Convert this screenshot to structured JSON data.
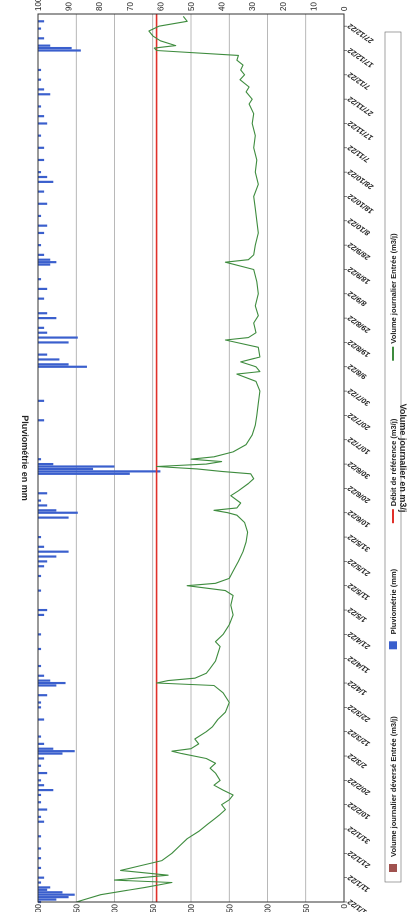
{
  "chart_data": {
    "type": "bar+line",
    "title": "",
    "left_axis": {
      "label": "Volume journalier en m3/j",
      "range": [
        0,
        400
      ],
      "ticks": [
        "0",
        "50",
        "100",
        "150",
        "200",
        "250",
        "300",
        "350",
        "400"
      ]
    },
    "right_axis": {
      "label": "Pluviométrie en mm",
      "range": [
        0,
        100
      ],
      "ticks": [
        "0",
        "10",
        "20",
        "30",
        "40",
        "50",
        "60",
        "70",
        "80",
        "90",
        "100"
      ]
    },
    "grid": true,
    "legend_position": "bottom",
    "x_tick_labels": [
      "1/1/22",
      "11/1/22",
      "21/1/22",
      "31/1/22",
      "10/2/22",
      "20/2/22",
      "2/3/22",
      "12/3/22",
      "22/3/22",
      "1/4/22",
      "11/4/22",
      "21/4/22",
      "1/5/22",
      "11/5/22",
      "21/5/22",
      "31/5/22",
      "10/6/22",
      "20/6/22",
      "30/6/22",
      "10/7/22",
      "20/7/22",
      "30/7/22",
      "9/8/22",
      "19/8/22",
      "29/8/22",
      "8/9/22",
      "18/9/22",
      "28/9/22",
      "8/10/22",
      "18/10/22",
      "28/10/22",
      "7/11/22",
      "17/11/22",
      "27/11/22",
      "7/12/22",
      "17/12/22",
      "27/12/22"
    ],
    "x_range_days": [
      0,
      365
    ],
    "series": [
      {
        "name": "Volume journalier déversé Entrée (m3/j)",
        "type": "bar",
        "color": "#a0524f",
        "axis": "left",
        "points": []
      },
      {
        "name": "Pluviométrie (mm)",
        "type": "bar",
        "color": "#3a5fcd",
        "axis": "right",
        "points": [
          [
            0,
            1
          ],
          [
            1,
            6
          ],
          [
            2,
            10
          ],
          [
            3,
            12
          ],
          [
            4,
            8
          ],
          [
            5,
            3
          ],
          [
            6,
            4
          ],
          [
            8,
            1
          ],
          [
            10,
            2
          ],
          [
            14,
            1
          ],
          [
            18,
            1
          ],
          [
            22,
            1
          ],
          [
            27,
            1
          ],
          [
            33,
            2
          ],
          [
            35,
            1
          ],
          [
            38,
            3
          ],
          [
            41,
            1
          ],
          [
            44,
            1
          ],
          [
            46,
            5
          ],
          [
            48,
            2
          ],
          [
            50,
            1
          ],
          [
            53,
            3
          ],
          [
            56,
            1
          ],
          [
            59,
            2
          ],
          [
            61,
            8
          ],
          [
            62,
            12
          ],
          [
            63,
            5
          ],
          [
            65,
            2
          ],
          [
            68,
            1
          ],
          [
            75,
            2
          ],
          [
            80,
            1
          ],
          [
            82,
            1
          ],
          [
            85,
            3
          ],
          [
            89,
            6
          ],
          [
            90,
            9
          ],
          [
            91,
            4
          ],
          [
            93,
            2
          ],
          [
            97,
            1
          ],
          [
            104,
            1
          ],
          [
            110,
            1
          ],
          [
            118,
            2
          ],
          [
            120,
            3
          ],
          [
            128,
            1
          ],
          [
            134,
            1
          ],
          [
            138,
            2
          ],
          [
            140,
            3
          ],
          [
            142,
            6
          ],
          [
            144,
            10
          ],
          [
            146,
            2
          ],
          [
            150,
            1
          ],
          [
            158,
            10
          ],
          [
            160,
            13
          ],
          [
            161,
            6
          ],
          [
            163,
            3
          ],
          [
            165,
            1
          ],
          [
            168,
            3
          ],
          [
            176,
            30
          ],
          [
            177,
            40
          ],
          [
            178,
            18
          ],
          [
            179,
            25
          ],
          [
            180,
            5
          ],
          [
            182,
            1
          ],
          [
            198,
            2
          ],
          [
            206,
            2
          ],
          [
            220,
            16
          ],
          [
            221,
            10
          ],
          [
            223,
            7
          ],
          [
            225,
            3
          ],
          [
            230,
            10
          ],
          [
            232,
            13
          ],
          [
            234,
            3
          ],
          [
            236,
            2
          ],
          [
            240,
            6
          ],
          [
            242,
            3
          ],
          [
            248,
            2
          ],
          [
            252,
            3
          ],
          [
            256,
            1
          ],
          [
            262,
            4
          ],
          [
            263,
            6
          ],
          [
            264,
            4
          ],
          [
            266,
            2
          ],
          [
            270,
            1
          ],
          [
            275,
            2
          ],
          [
            278,
            3
          ],
          [
            282,
            1
          ],
          [
            287,
            3
          ],
          [
            292,
            2
          ],
          [
            296,
            5
          ],
          [
            298,
            3
          ],
          [
            300,
            1
          ],
          [
            305,
            2
          ],
          [
            310,
            2
          ],
          [
            315,
            1
          ],
          [
            320,
            3
          ],
          [
            323,
            2
          ],
          [
            327,
            1
          ],
          [
            332,
            4
          ],
          [
            334,
            2
          ],
          [
            338,
            1
          ],
          [
            342,
            1
          ],
          [
            350,
            14
          ],
          [
            351,
            11
          ],
          [
            352,
            4
          ],
          [
            355,
            2
          ],
          [
            359,
            1
          ],
          [
            362,
            2
          ]
        ]
      },
      {
        "name": "Débit de référence (m3/j)",
        "type": "line",
        "color": "#e0302a",
        "axis": "left",
        "value": 245
      },
      {
        "name": "Volume journalier Entrée (m3/j)",
        "type": "line",
        "color": "#3d8b3d",
        "axis": "left",
        "points": [
          [
            0,
            350
          ],
          [
            3,
            318
          ],
          [
            6,
            260
          ],
          [
            8,
            225
          ],
          [
            9,
            300
          ],
          [
            11,
            230
          ],
          [
            13,
            292
          ],
          [
            15,
            265
          ],
          [
            17,
            238
          ],
          [
            20,
            225
          ],
          [
            23,
            215
          ],
          [
            26,
            205
          ],
          [
            29,
            190
          ],
          [
            32,
            178
          ],
          [
            34,
            170
          ],
          [
            36,
            162
          ],
          [
            38,
            155
          ],
          [
            40,
            160
          ],
          [
            42,
            150
          ],
          [
            44,
            145
          ],
          [
            46,
            158
          ],
          [
            48,
            170
          ],
          [
            50,
            162
          ],
          [
            53,
            168
          ],
          [
            55,
            175
          ],
          [
            57,
            168
          ],
          [
            59,
            180
          ],
          [
            61,
            212
          ],
          [
            62,
            225
          ],
          [
            63,
            200
          ],
          [
            65,
            190
          ],
          [
            67,
            195
          ],
          [
            70,
            180
          ],
          [
            72,
            172
          ],
          [
            75,
            165
          ],
          [
            78,
            155
          ],
          [
            82,
            150
          ],
          [
            86,
            158
          ],
          [
            89,
            170
          ],
          [
            90,
            245
          ],
          [
            91,
            230
          ],
          [
            92,
            195
          ],
          [
            94,
            180
          ],
          [
            96,
            175
          ],
          [
            99,
            168
          ],
          [
            102,
            165
          ],
          [
            105,
            162
          ],
          [
            107,
            168
          ],
          [
            110,
            158
          ],
          [
            114,
            150
          ],
          [
            118,
            145
          ],
          [
            122,
            148
          ],
          [
            126,
            145
          ],
          [
            128,
            155
          ],
          [
            130,
            205
          ],
          [
            131,
            168
          ],
          [
            133,
            150
          ],
          [
            136,
            145
          ],
          [
            140,
            138
          ],
          [
            144,
            132
          ],
          [
            148,
            128
          ],
          [
            152,
            126
          ],
          [
            156,
            130
          ],
          [
            159,
            140
          ],
          [
            160,
            152
          ],
          [
            161,
            170
          ],
          [
            162,
            140
          ],
          [
            164,
            135
          ],
          [
            167,
            148
          ],
          [
            169,
            138
          ],
          [
            172,
            125
          ],
          [
            174,
            118
          ],
          [
            176,
            122
          ],
          [
            177,
            160
          ],
          [
            178,
            192
          ],
          [
            179,
            245
          ],
          [
            180,
            180
          ],
          [
            181,
            160
          ],
          [
            182,
            200
          ],
          [
            183,
            170
          ],
          [
            185,
            145
          ],
          [
            188,
            128
          ],
          [
            192,
            120
          ],
          [
            196,
            116
          ],
          [
            200,
            114
          ],
          [
            205,
            112
          ],
          [
            210,
            110
          ],
          [
            214,
            115
          ],
          [
            217,
            140
          ],
          [
            218,
            110
          ],
          [
            220,
            115
          ],
          [
            222,
            135
          ],
          [
            224,
            110
          ],
          [
            228,
            112
          ],
          [
            231,
            155
          ],
          [
            232,
            125
          ],
          [
            234,
            115
          ],
          [
            238,
            118
          ],
          [
            241,
            112
          ],
          [
            245,
            116
          ],
          [
            250,
            112
          ],
          [
            255,
            114
          ],
          [
            260,
            118
          ],
          [
            263,
            155
          ],
          [
            264,
            125
          ],
          [
            266,
            118
          ],
          [
            270,
            116
          ],
          [
            275,
            112
          ],
          [
            280,
            114
          ],
          [
            285,
            116
          ],
          [
            290,
            118
          ],
          [
            295,
            112
          ],
          [
            300,
            116
          ],
          [
            305,
            114
          ],
          [
            310,
            118
          ],
          [
            315,
            116
          ],
          [
            320,
            120
          ],
          [
            324,
            118
          ],
          [
            328,
            124
          ],
          [
            330,
            120
          ],
          [
            333,
            128
          ],
          [
            335,
            124
          ],
          [
            338,
            136
          ],
          [
            340,
            130
          ],
          [
            342,
            135
          ],
          [
            344,
            132
          ],
          [
            346,
            140
          ],
          [
            348,
            138
          ],
          [
            350,
            245
          ],
          [
            351,
            248
          ],
          [
            352,
            220
          ],
          [
            354,
            240
          ],
          [
            356,
            250
          ],
          [
            358,
            255
          ],
          [
            360,
            242
          ],
          [
            362,
            205
          ],
          [
            364,
            210
          ]
        ]
      }
    ]
  },
  "axis_titles": {
    "left": "Volume journalier en m3/j",
    "right": "Pluviométrie en mm"
  },
  "legend": {
    "items": [
      {
        "label": "Volume journalier déversé Entrée (m3/j)",
        "color": "#a0524f",
        "kind": "box"
      },
      {
        "label": "Pluviométrie (mm)",
        "color": "#3a5fcd",
        "kind": "box"
      },
      {
        "label": "Débit de référence (m3/j)",
        "color": "#e0302a",
        "kind": "line"
      },
      {
        "label": "Volume journalier Entrée (m3/j)",
        "color": "#3d8b3d",
        "kind": "line"
      }
    ]
  }
}
